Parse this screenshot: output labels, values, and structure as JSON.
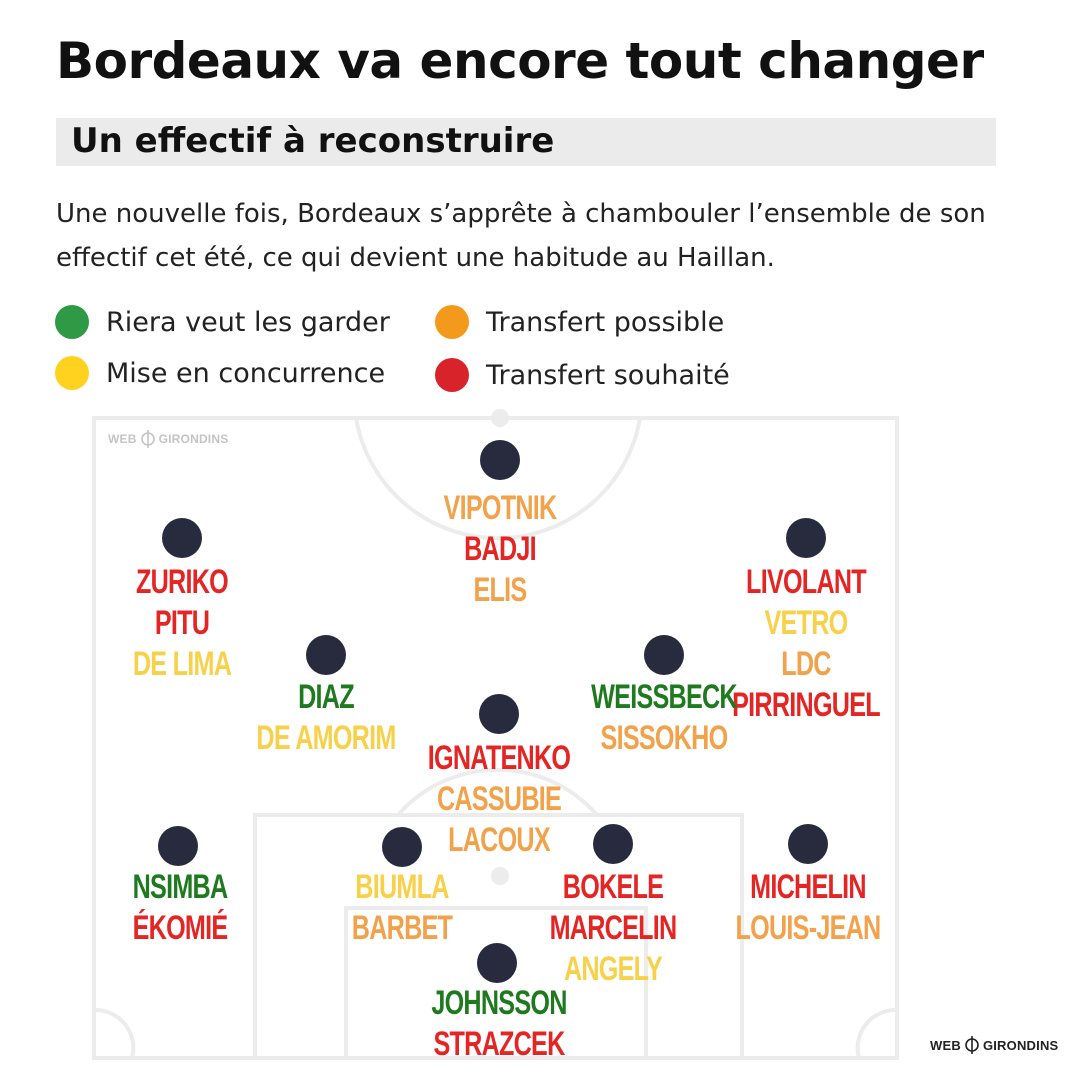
{
  "header": {
    "title": "Bordeaux va encore tout changer",
    "subtitle": "Un effectif à reconstruire",
    "description": "Une nouvelle fois, Bordeaux s’apprête à chambouler l’ensemble de son effectif cet été, ce qui devient une habitude au Haillan."
  },
  "colors": {
    "green": "#1f7a1f",
    "yellow": "#f8d14a",
    "orange": "#f2a24a",
    "red": "#e52424",
    "legend_green": "#2e9a46",
    "legend_yellow": "#ffd21f",
    "legend_orange": "#f39a1c",
    "legend_red": "#d8232a",
    "player_dot": "#272b3d",
    "pitch_lines": "#ececec",
    "subtitle_bg": "#ebebeb"
  },
  "legend": [
    {
      "label": "Riera veut les garder",
      "color": "#2e9a46"
    },
    {
      "label": "Mise en concurrence",
      "color": "#ffd21f"
    },
    {
      "label": "Transfert possible",
      "color": "#f39a1c"
    },
    {
      "label": "Transfert souhaité",
      "color": "#d8232a"
    }
  ],
  "watermark": {
    "left": "WEB",
    "right": "GIRONDINS",
    "icon": "crosshair-icon"
  },
  "positions": {
    "striker": [
      {
        "name": "VIPOTNIK",
        "status": "orange"
      },
      {
        "name": "BADJI",
        "status": "red"
      },
      {
        "name": "ELIS",
        "status": "orange"
      }
    ],
    "left_wing": [
      {
        "name": "ZURIKO",
        "status": "red"
      },
      {
        "name": "PITU",
        "status": "red"
      },
      {
        "name": "DE LIMA",
        "status": "yellow"
      }
    ],
    "right_wing": [
      {
        "name": "LIVOLANT",
        "status": "red"
      },
      {
        "name": "VETRO",
        "status": "yellow"
      },
      {
        "name": "LDC",
        "status": "orange"
      },
      {
        "name": "PIRRINGUEL",
        "status": "red"
      }
    ],
    "left_midfield": [
      {
        "name": "DIAZ",
        "status": "green"
      },
      {
        "name": "DE AMORIM",
        "status": "yellow"
      }
    ],
    "right_midfield": [
      {
        "name": "WEISSBECK",
        "status": "green"
      },
      {
        "name": "SISSOKHO",
        "status": "orange"
      }
    ],
    "defensive_midfield": [
      {
        "name": "IGNATENKO",
        "status": "red"
      },
      {
        "name": "CASSUBIE",
        "status": "orange"
      },
      {
        "name": "LACOUX",
        "status": "orange"
      }
    ],
    "left_back": [
      {
        "name": "NSIMBA",
        "status": "green"
      },
      {
        "name": "ÉKOMIÉ",
        "status": "red"
      }
    ],
    "left_centre_back": [
      {
        "name": "BIUMLA",
        "status": "yellow"
      },
      {
        "name": "BARBET",
        "status": "orange"
      }
    ],
    "right_centre_back": [
      {
        "name": "BOKELE",
        "status": "red"
      },
      {
        "name": "MARCELIN",
        "status": "red"
      },
      {
        "name": "ANGELY",
        "status": "yellow"
      }
    ],
    "right_back": [
      {
        "name": "MICHELIN",
        "status": "red"
      },
      {
        "name": "LOUIS-JEAN",
        "status": "orange"
      }
    ],
    "goalkeeper": [
      {
        "name": "JOHNSSON",
        "status": "green"
      },
      {
        "name": "STRAZCEK",
        "status": "red"
      }
    ]
  }
}
